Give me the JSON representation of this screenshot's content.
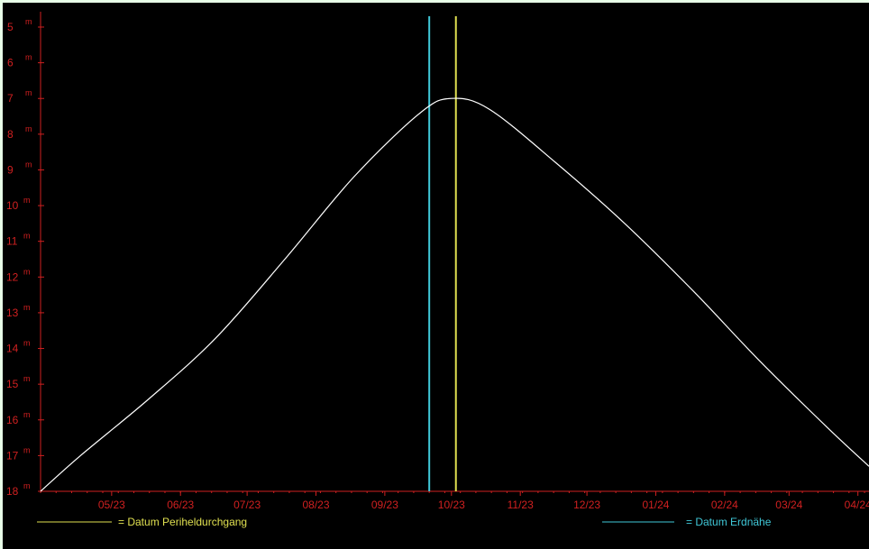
{
  "chart_data": {
    "type": "line",
    "title": "",
    "xlabel": "",
    "ylabel": "",
    "y_inverted": true,
    "ylim": [
      18,
      5
    ],
    "y_ticks": [
      5,
      6,
      7,
      8,
      9,
      10,
      11,
      12,
      13,
      14,
      15,
      16,
      17,
      18
    ],
    "y_unit": "m",
    "xlim": [
      "2023-04-13",
      "2024-04-20"
    ],
    "x_ticks": [
      {
        "date": "2023-05-15",
        "label": "05/23"
      },
      {
        "date": "2023-06-15",
        "label": "06/23"
      },
      {
        "date": "2023-07-15",
        "label": "07/23"
      },
      {
        "date": "2023-08-15",
        "label": "08/23"
      },
      {
        "date": "2023-09-15",
        "label": "09/23"
      },
      {
        "date": "2023-10-15",
        "label": "10/23"
      },
      {
        "date": "2023-11-15",
        "label": "11/23"
      },
      {
        "date": "2023-12-15",
        "label": "12/23"
      },
      {
        "date": "2024-01-15",
        "label": "01/24"
      },
      {
        "date": "2024-02-15",
        "label": "02/24"
      },
      {
        "date": "2024-03-15",
        "label": "03/24"
      },
      {
        "date": "2024-04-15",
        "label": "04/24"
      }
    ],
    "grid": false,
    "legend": "bottom",
    "series": [
      {
        "color": "#ffffff",
        "points": [
          {
            "x": "2023-04-13",
            "y": 18.0
          },
          {
            "x": "2023-05-01",
            "y": 17.0
          },
          {
            "x": "2023-06-01",
            "y": 15.4
          },
          {
            "x": "2023-07-01",
            "y": 13.7
          },
          {
            "x": "2023-08-01",
            "y": 11.5
          },
          {
            "x": "2023-09-01",
            "y": 9.2
          },
          {
            "x": "2023-10-01",
            "y": 7.4
          },
          {
            "x": "2023-10-15",
            "y": 7.0
          },
          {
            "x": "2023-11-01",
            "y": 7.3
          },
          {
            "x": "2023-12-01",
            "y": 8.8
          },
          {
            "x": "2024-01-01",
            "y": 10.5
          },
          {
            "x": "2024-02-01",
            "y": 12.4
          },
          {
            "x": "2024-03-01",
            "y": 14.3
          },
          {
            "x": "2024-04-01",
            "y": 16.2
          },
          {
            "x": "2024-04-20",
            "y": 17.3
          }
        ]
      }
    ],
    "markers": [
      {
        "name": "= Datum Erdnähe",
        "date": "2023-10-05",
        "color": "#40c8d8"
      },
      {
        "name": "= Datum Periheldurchgang",
        "date": "2023-10-17",
        "color": "#e0e050"
      }
    ],
    "axis_color": "#d02020"
  }
}
